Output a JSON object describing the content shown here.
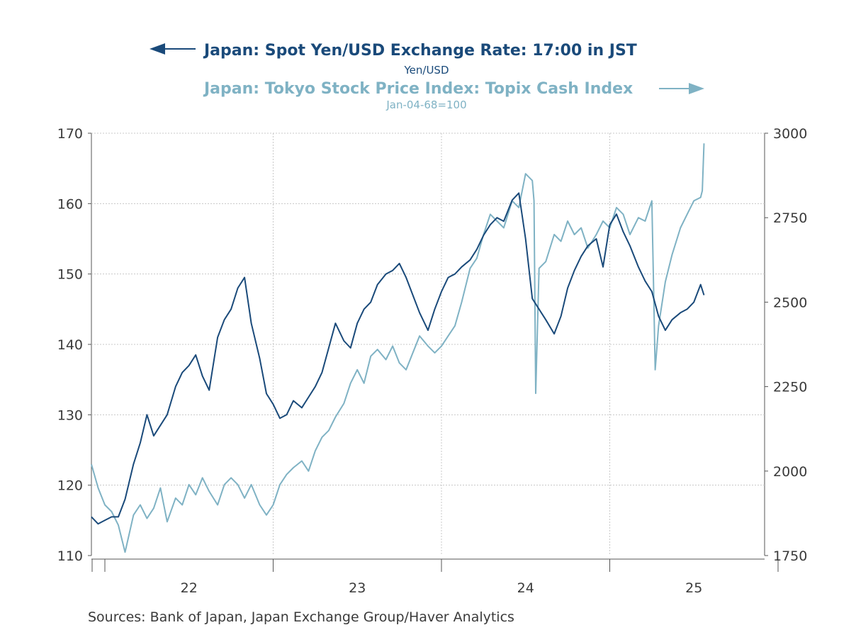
{
  "chart_data": {
    "type": "line",
    "legend": [
      {
        "name": "Japan: Spot Yen/USD Exchange Rate: 17:00 in JST",
        "unit": "Yen/USD",
        "axis": "left",
        "color": "#1a4a7a",
        "arrow": "left"
      },
      {
        "name": "Japan: Tokyo Stock Price Index: Topix Cash Index",
        "unit": "Jan-04-68=100",
        "axis": "right",
        "color": "#7fb2c4",
        "arrow": "right"
      }
    ],
    "x_ticks": [
      "22",
      "23",
      "24",
      "25"
    ],
    "xlim": [
      2021.92,
      2025.92
    ],
    "left_axis": {
      "range": [
        110,
        170
      ],
      "ticks": [
        "110",
        "120",
        "130",
        "140",
        "150",
        "160",
        "170"
      ]
    },
    "right_axis": {
      "range": [
        1750,
        3000
      ],
      "ticks": [
        "1750",
        "2000",
        "2250",
        "2500",
        "2750",
        "3000"
      ]
    },
    "grid": true,
    "series": [
      {
        "name": "Japan: Spot Yen/USD Exchange Rate: 17:00 in JST",
        "axis": "left",
        "color": "#1a4a7a",
        "x": [
          2021.92,
          2021.96,
          2022.0,
          2022.04,
          2022.08,
          2022.12,
          2022.17,
          2022.21,
          2022.25,
          2022.29,
          2022.33,
          2022.37,
          2022.42,
          2022.46,
          2022.5,
          2022.54,
          2022.58,
          2022.62,
          2022.67,
          2022.71,
          2022.75,
          2022.79,
          2022.83,
          2022.87,
          2022.92,
          2022.96,
          2023.0,
          2023.04,
          2023.08,
          2023.12,
          2023.17,
          2023.21,
          2023.25,
          2023.29,
          2023.33,
          2023.37,
          2023.42,
          2023.46,
          2023.5,
          2023.54,
          2023.58,
          2023.62,
          2023.67,
          2023.71,
          2023.75,
          2023.79,
          2023.83,
          2023.87,
          2023.92,
          2023.96,
          2024.0,
          2024.04,
          2024.08,
          2024.12,
          2024.17,
          2024.21,
          2024.25,
          2024.29,
          2024.33,
          2024.37,
          2024.42,
          2024.46,
          2024.5,
          2024.54,
          2024.58,
          2024.62,
          2024.67,
          2024.71,
          2024.75,
          2024.79,
          2024.83,
          2024.87,
          2024.92,
          2024.96,
          2025.0,
          2025.04,
          2025.08,
          2025.12,
          2025.17,
          2025.21,
          2025.25,
          2025.29,
          2025.33,
          2025.37,
          2025.42,
          2025.46,
          2025.5,
          2025.54,
          2025.56
        ],
        "y": [
          115.5,
          114.5,
          115.0,
          115.5,
          115.5,
          118.0,
          123.0,
          126.0,
          130.0,
          127.0,
          128.5,
          130.0,
          134.0,
          136.0,
          137.0,
          138.5,
          135.5,
          133.5,
          141.0,
          143.5,
          145.0,
          148.0,
          149.5,
          143.0,
          138.0,
          133.0,
          131.5,
          129.5,
          130.0,
          132.0,
          131.0,
          132.5,
          134.0,
          136.0,
          139.5,
          143.0,
          140.5,
          139.5,
          143.0,
          145.0,
          146.0,
          148.5,
          150.0,
          150.5,
          151.5,
          149.5,
          147.0,
          144.5,
          142.0,
          145.0,
          147.5,
          149.5,
          150.0,
          151.0,
          152.0,
          153.5,
          155.5,
          157.0,
          158.0,
          157.5,
          160.5,
          161.5,
          155.0,
          146.5,
          145.0,
          143.5,
          141.5,
          144.0,
          148.0,
          150.5,
          152.5,
          154.0,
          155.0,
          151.0,
          157.0,
          158.5,
          156.0,
          154.0,
          151.0,
          149.0,
          147.5,
          144.0,
          142.0,
          143.5,
          144.5,
          145.0,
          146.0,
          148.5,
          147.0
        ]
      },
      {
        "name": "Japan: Tokyo Stock Price Index: Topix Cash Index",
        "axis": "right",
        "color": "#7fb2c4",
        "x": [
          2021.92,
          2021.96,
          2022.0,
          2022.04,
          2022.08,
          2022.12,
          2022.17,
          2022.21,
          2022.25,
          2022.29,
          2022.33,
          2022.37,
          2022.42,
          2022.46,
          2022.5,
          2022.54,
          2022.58,
          2022.62,
          2022.67,
          2022.71,
          2022.75,
          2022.79,
          2022.83,
          2022.87,
          2022.92,
          2022.96,
          2023.0,
          2023.04,
          2023.08,
          2023.12,
          2023.17,
          2023.21,
          2023.25,
          2023.29,
          2023.33,
          2023.37,
          2023.42,
          2023.46,
          2023.5,
          2023.54,
          2023.58,
          2023.62,
          2023.67,
          2023.71,
          2023.75,
          2023.79,
          2023.83,
          2023.87,
          2023.92,
          2023.96,
          2024.0,
          2024.04,
          2024.08,
          2024.12,
          2024.17,
          2024.21,
          2024.25,
          2024.29,
          2024.33,
          2024.37,
          2024.42,
          2024.46,
          2024.5,
          2024.54,
          2024.55,
          2024.56,
          2024.58,
          2024.62,
          2024.67,
          2024.71,
          2024.75,
          2024.79,
          2024.83,
          2024.87,
          2024.92,
          2024.96,
          2025.0,
          2025.04,
          2025.08,
          2025.12,
          2025.17,
          2025.21,
          2025.25,
          2025.26,
          2025.27,
          2025.29,
          2025.33,
          2025.37,
          2025.42,
          2025.46,
          2025.5,
          2025.54,
          2025.55,
          2025.56
        ],
        "y": [
          2020,
          1950,
          1900,
          1880,
          1840,
          1760,
          1870,
          1900,
          1860,
          1890,
          1950,
          1850,
          1920,
          1900,
          1960,
          1930,
          1980,
          1940,
          1900,
          1960,
          1980,
          1960,
          1920,
          1960,
          1900,
          1870,
          1900,
          1960,
          1990,
          2010,
          2030,
          2000,
          2060,
          2100,
          2120,
          2160,
          2200,
          2260,
          2300,
          2260,
          2340,
          2360,
          2330,
          2370,
          2320,
          2300,
          2350,
          2400,
          2370,
          2350,
          2370,
          2400,
          2430,
          2500,
          2600,
          2630,
          2700,
          2760,
          2740,
          2720,
          2800,
          2780,
          2880,
          2860,
          2800,
          2230,
          2600,
          2620,
          2700,
          2680,
          2740,
          2700,
          2720,
          2660,
          2700,
          2740,
          2720,
          2780,
          2760,
          2700,
          2750,
          2740,
          2800,
          2560,
          2300,
          2430,
          2560,
          2640,
          2720,
          2760,
          2800,
          2810,
          2830,
          2970
        ]
      }
    ]
  },
  "source": "Sources:  Bank of Japan, Japan Exchange Group/Haver Analytics"
}
